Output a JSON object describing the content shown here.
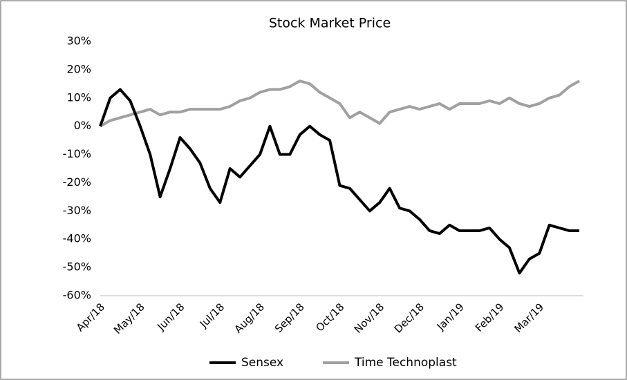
{
  "chart_data": {
    "type": "line",
    "title": "Stock Market Price",
    "categories": [
      "Apr/18",
      null,
      null,
      null,
      "May/18",
      null,
      null,
      null,
      "Jun/18",
      null,
      null,
      null,
      "Jul/18",
      null,
      null,
      null,
      "Aug/18",
      null,
      null,
      null,
      "Sep/18",
      null,
      null,
      null,
      "Oct/18",
      null,
      null,
      null,
      "Nov/18",
      null,
      null,
      null,
      "Dec/18",
      null,
      null,
      null,
      "Jan/19",
      null,
      null,
      null,
      "Feb/19",
      null,
      null,
      null,
      "Mar/19",
      null,
      null,
      null,
      null
    ],
    "series": [
      {
        "name": "Sensex",
        "color": "#000000",
        "values": [
          0,
          10,
          13,
          9,
          0,
          -10,
          -25,
          -15,
          -4,
          -8,
          -13,
          -22,
          -27,
          -15,
          -18,
          -14,
          -10,
          0,
          -10,
          -10,
          -3,
          0,
          -3,
          -5,
          -21,
          -22,
          -26,
          -30,
          -27,
          -22,
          -29,
          -30,
          -33,
          -37,
          -38,
          -35,
          -37,
          -37,
          -37,
          -36,
          -40,
          -43,
          -52,
          -47,
          -45,
          -35,
          -36,
          -37,
          -37
        ]
      },
      {
        "name": "Time Technoplast",
        "color": "#a0a0a0",
        "values": [
          0,
          2,
          3,
          4,
          5,
          6,
          4,
          5,
          5,
          6,
          6,
          6,
          6,
          7,
          9,
          10,
          12,
          13,
          13,
          14,
          16,
          15,
          12,
          10,
          8,
          3,
          5,
          3,
          1,
          5,
          6,
          7,
          6,
          7,
          8,
          6,
          8,
          8,
          8,
          9,
          8,
          10,
          8,
          7,
          8,
          10,
          11,
          14,
          16
        ]
      }
    ],
    "ylim": [
      -60,
      30
    ],
    "yticks": [
      {
        "value": -60,
        "label": "-60%"
      },
      {
        "value": -50,
        "label": "-50%"
      },
      {
        "value": -40,
        "label": "-40%"
      },
      {
        "value": -30,
        "label": "-30%"
      },
      {
        "value": -20,
        "label": "-20%"
      },
      {
        "value": -10,
        "label": "-10%"
      },
      {
        "value": 0,
        "label": "0%"
      },
      {
        "value": 10,
        "label": "10%"
      },
      {
        "value": 20,
        "label": "20%"
      },
      {
        "value": 30,
        "label": "30%"
      }
    ],
    "grid": false,
    "legend": "bottom"
  }
}
